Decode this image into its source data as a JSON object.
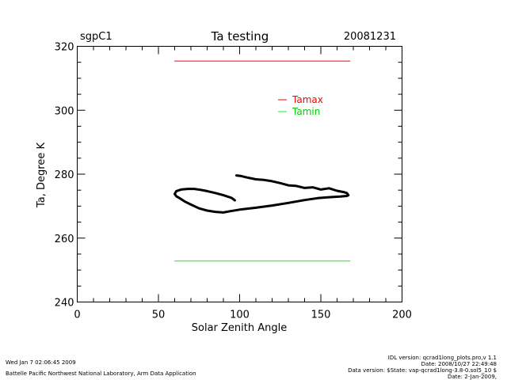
{
  "header": {
    "site": "sgpC1",
    "title": "Ta testing",
    "date": "20081231"
  },
  "footer": {
    "run_time": "Wed Jan  7 02:06:45 2009",
    "lab": "Battelle Pacific Northwest National Laboratory, Arm Data Application",
    "idl_version": "IDL version: qcrad1long_plots.pro,v 1.1",
    "idl_date": "Date: 2008/10/27 22:49:48",
    "data_version": "Data version: $State: vap-qcrad1long-3.8-0.sol5_10 $",
    "data_date": "Date: 2-Jan-2009,"
  },
  "chart_data": {
    "type": "line",
    "title": "Ta testing",
    "xlabel": "Solar Zenith Angle",
    "ylabel": "Ta, Degree K",
    "xlim": [
      0,
      200
    ],
    "ylim": [
      240,
      320
    ],
    "xticks": [
      "0",
      "50",
      "100",
      "150",
      "200"
    ],
    "yticks": [
      "240",
      "260",
      "280",
      "300",
      "320"
    ],
    "grid": false,
    "legend_position": "top-right",
    "colors": {
      "tamax": "#ff0000",
      "tamin": "#00ff00",
      "data": "#000000"
    },
    "series": [
      {
        "name": "Tamax",
        "color": "#ff0000",
        "x": [
          60,
          168
        ],
        "y": [
          315.4,
          315.4
        ]
      },
      {
        "name": "Tamin",
        "color": "#00ff00",
        "x": [
          60,
          168
        ],
        "y": [
          252.8,
          252.8
        ]
      },
      {
        "color": "#000000",
        "x": [
          98,
          101,
          105,
          110,
          115,
          120,
          125,
          130,
          135,
          140,
          145,
          150,
          155,
          160,
          164,
          166,
          167,
          166,
          162,
          155,
          148,
          140,
          130,
          120,
          110,
          100,
          94,
          90,
          85,
          80,
          75,
          70,
          66,
          63,
          61,
          60,
          61,
          64,
          68,
          72,
          76,
          80,
          85,
          90,
          95,
          97
        ],
        "y": [
          279.6,
          279.4,
          278.9,
          278.4,
          278.2,
          277.8,
          277.2,
          276.5,
          276.3,
          275.7,
          275.9,
          275.2,
          275.6,
          274.8,
          274.4,
          274.1,
          273.4,
          273.2,
          273.0,
          272.8,
          272.5,
          271.9,
          271.0,
          270.2,
          269.5,
          268.9,
          268.4,
          268.0,
          268.2,
          268.6,
          269.3,
          270.5,
          271.5,
          272.5,
          273.1,
          273.8,
          274.7,
          275.2,
          275.4,
          275.4,
          275.1,
          274.7,
          274.1,
          273.4,
          272.6,
          271.8
        ]
      }
    ]
  }
}
